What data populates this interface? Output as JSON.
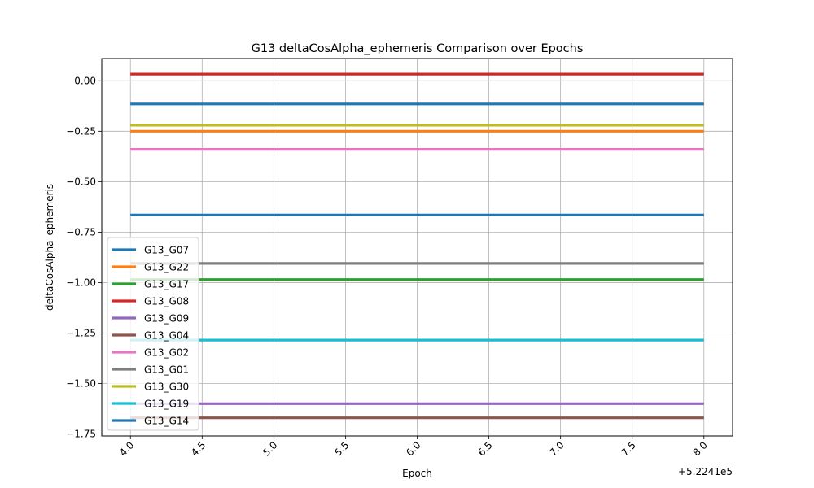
{
  "chart_data": {
    "type": "line",
    "title": "G13 deltaCosAlpha_ephemeris Comparison over Epochs",
    "xlabel": "Epoch",
    "ylabel": "deltaCosAlpha_ephemeris",
    "x_offset_label": "+5.2241e5",
    "x_ticks": [
      "4.0",
      "4.5",
      "5.0",
      "5.5",
      "6.0",
      "6.5",
      "7.0",
      "7.5",
      "8.0"
    ],
    "y_ticks": [
      "0.00",
      "−0.25",
      "−0.50",
      "−0.75",
      "−1.00",
      "−1.25",
      "−1.50",
      "−1.75"
    ],
    "xlim": [
      3.8,
      8.2
    ],
    "ylim": [
      -1.76,
      0.11
    ],
    "grid": true,
    "legend_position": "lower-left",
    "series": [
      {
        "name": "G13_G07",
        "color": "#1f77b4",
        "x": [
          4.0,
          8.0
        ],
        "values": [
          -0.665,
          -0.665
        ]
      },
      {
        "name": "G13_G22",
        "color": "#ff7f0e",
        "x": [
          4.0,
          8.0
        ],
        "values": [
          -0.25,
          -0.25
        ]
      },
      {
        "name": "G13_G17",
        "color": "#2ca02c",
        "x": [
          4.0,
          8.0
        ],
        "values": [
          -0.985,
          -0.985
        ]
      },
      {
        "name": "G13_G08",
        "color": "#d62728",
        "x": [
          4.0,
          8.0
        ],
        "values": [
          0.033,
          0.033
        ]
      },
      {
        "name": "G13_G09",
        "color": "#9467bd",
        "x": [
          4.0,
          8.0
        ],
        "values": [
          -1.6,
          -1.6
        ]
      },
      {
        "name": "G13_G04",
        "color": "#8c564b",
        "x": [
          4.0,
          8.0
        ],
        "values": [
          -1.67,
          -1.67
        ]
      },
      {
        "name": "G13_G02",
        "color": "#e377c2",
        "x": [
          4.0,
          8.0
        ],
        "values": [
          -0.34,
          -0.34
        ]
      },
      {
        "name": "G13_G01",
        "color": "#7f7f7f",
        "x": [
          4.0,
          8.0
        ],
        "values": [
          -0.905,
          -0.905
        ]
      },
      {
        "name": "G13_G30",
        "color": "#bcbd22",
        "x": [
          4.0,
          8.0
        ],
        "values": [
          -0.22,
          -0.22
        ]
      },
      {
        "name": "G13_G19",
        "color": "#17becf",
        "x": [
          4.0,
          8.0
        ],
        "values": [
          -1.285,
          -1.285
        ]
      },
      {
        "name": "G13_G14",
        "color": "#1f77b4",
        "x": [
          4.0,
          8.0
        ],
        "values": [
          -0.115,
          -0.115
        ]
      }
    ]
  }
}
